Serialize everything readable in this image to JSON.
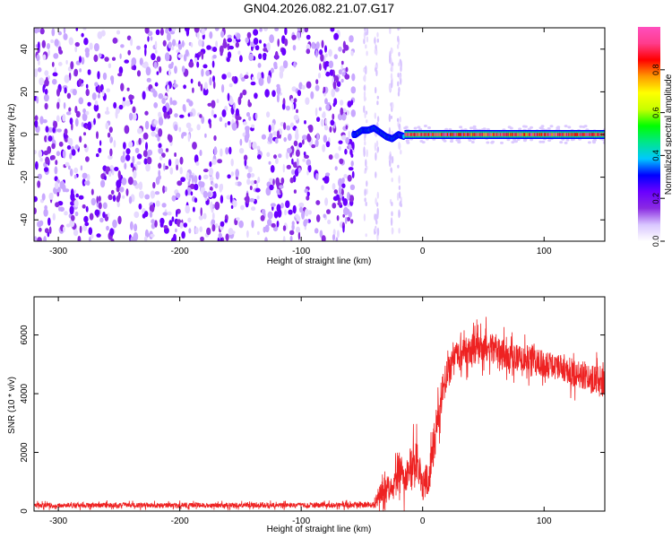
{
  "figure": {
    "title": "GN04.2026.082.21.07.G17"
  },
  "chart_data": [
    {
      "type": "heatmap",
      "title": "GN04.2026.082.21.07.G17",
      "xlabel": "Height of straight line (km)",
      "ylabel": "Frequency (Hz)",
      "xlim": [
        -320,
        150
      ],
      "ylim": [
        -50,
        50
      ],
      "x_ticks": [
        -300,
        -200,
        -100,
        0,
        100
      ],
      "y_ticks": [
        -40,
        -20,
        0,
        20,
        40
      ],
      "regions": [
        {
          "name": "noise",
          "x_range": [
            -320,
            -57
          ],
          "description_level": "scattered low amplitude 0.1-0.25"
        },
        {
          "name": "transition",
          "x_range": [
            -57,
            -15
          ],
          "track_freq": [
            [
              -55,
              0
            ],
            [
              -50,
              2
            ],
            [
              -45,
              2
            ],
            [
              -40,
              3
            ],
            [
              -35,
              1
            ],
            [
              -30,
              -1
            ],
            [
              -25,
              -2
            ],
            [
              -20,
              0
            ],
            [
              -15,
              -1
            ]
          ]
        },
        {
          "name": "signal",
          "x_range": [
            -15,
            150
          ],
          "track_freq": 0,
          "peak_amplitude": 1.0
        }
      ],
      "colorbar": {
        "label": "Normalized spectral amplitude",
        "range": [
          0,
          1
        ],
        "ticks": [
          "0.0",
          "0.2",
          "0.4",
          "0.6",
          "0.8"
        ],
        "colors": [
          "#ffffff",
          "#d9c6ff",
          "#8a2be2",
          "#6a00ff",
          "#0000ff",
          "#00c8ff",
          "#00e68a",
          "#00ff00",
          "#c8ff00",
          "#ffff00",
          "#ff9900",
          "#ff0000",
          "#ff3c8c",
          "#ff4fbe"
        ]
      }
    },
    {
      "type": "line",
      "xlabel": "Height of straight line (km)",
      "ylabel": "SNR (10 * v/v)",
      "xlim": [
        -320,
        150
      ],
      "ylim": [
        0,
        7300
      ],
      "x_ticks": [
        -300,
        -200,
        -100,
        0,
        100
      ],
      "y_ticks": [
        0,
        2000,
        4000,
        6000
      ],
      "color": "#ee2222",
      "envelope": {
        "x": [
          -320,
          -100,
          -40,
          -35,
          -30,
          -25,
          -20,
          -15,
          -10,
          -5,
          0,
          5,
          10,
          15,
          20,
          25,
          30,
          40,
          50,
          60,
          70,
          80,
          90,
          100,
          110,
          120,
          130,
          140,
          150
        ],
        "mean": [
          200,
          200,
          210,
          600,
          900,
          700,
          1300,
          1000,
          1500,
          1700,
          900,
          1200,
          2500,
          3800,
          4700,
          5400,
          5300,
          5500,
          5600,
          5500,
          5300,
          5200,
          5200,
          5000,
          4900,
          4700,
          4600,
          4500,
          4400
        ],
        "spread": [
          120,
          120,
          140,
          600,
          700,
          600,
          900,
          800,
          1000,
          1000,
          800,
          900,
          1000,
          900,
          700,
          600,
          600,
          800,
          800,
          700,
          650,
          650,
          700,
          700,
          650,
          650,
          700,
          700,
          800
        ]
      }
    }
  ]
}
